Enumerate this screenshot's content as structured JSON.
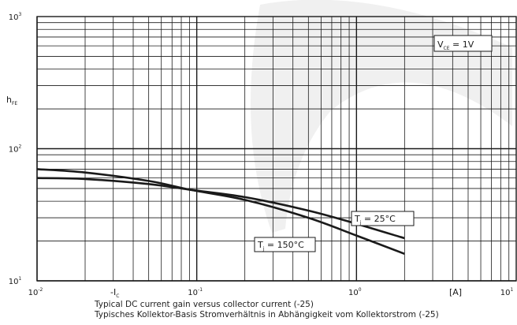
{
  "chart_data": {
    "type": "line",
    "x_scale": "log",
    "y_scale": "log",
    "xlim": [
      0.01,
      10
    ],
    "ylim": [
      10,
      1000
    ],
    "grid": true,
    "x_ticks": [
      {
        "value": 0.01,
        "base": "10",
        "exp": "-2"
      },
      {
        "value": 0.1,
        "base": "10",
        "exp": "-1"
      },
      {
        "value": 1,
        "base": "10",
        "exp": "0"
      },
      {
        "value": 10,
        "base": "10",
        "exp": "1"
      }
    ],
    "y_ticks": [
      {
        "value": 10,
        "base": "10",
        "exp": "1"
      },
      {
        "value": 100,
        "base": "10",
        "exp": "2"
      },
      {
        "value": 1000,
        "base": "10",
        "exp": "3"
      }
    ],
    "xlabel": {
      "main": "-I",
      "sub": "C"
    },
    "xunit": "[A]",
    "ylabel": {
      "main": "h",
      "sub": "FE"
    },
    "condition": {
      "main": "V",
      "sub": "CE",
      "rest": " = 1V"
    },
    "series": [
      {
        "name": "Tj = 25°C",
        "label": {
          "main": "T",
          "sub": "j",
          "rest": " = 25°C"
        },
        "x": [
          0.01,
          0.02,
          0.05,
          0.09,
          0.2,
          0.5,
          1,
          2
        ],
        "y": [
          60,
          59,
          54,
          49,
          43,
          34,
          27,
          21
        ]
      },
      {
        "name": "Tj = 150°C",
        "label": {
          "main": "T",
          "sub": "j",
          "rest": " = 150°C"
        },
        "x": [
          0.01,
          0.02,
          0.05,
          0.09,
          0.2,
          0.5,
          1,
          2
        ],
        "y": [
          70,
          66,
          57,
          49,
          41,
          30,
          22,
          16
        ]
      }
    ]
  },
  "caption": {
    "en": "Typical DC current gain versus collector current (-25)",
    "de": "Typisches Kollektor-Basis Stromverhältnis in Abhängigkeit vom Kollektorstrom (-25)"
  },
  "colors": {
    "line": "#1a1a1a",
    "grid": "#1a1a1a",
    "watermark": "#f0f0f0"
  }
}
